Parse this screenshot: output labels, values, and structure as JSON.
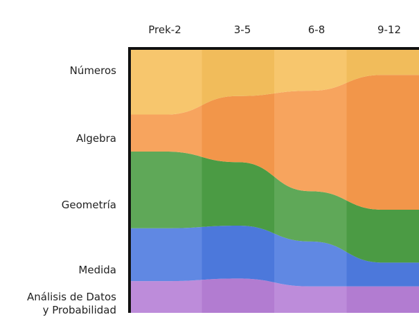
{
  "chart_data": {
    "type": "area",
    "stacked": true,
    "categories": [
      "Prek-2",
      "3-5",
      "6-8",
      "9-12"
    ],
    "series": [
      {
        "name": "Análisis de Datos y Probabilidad",
        "values": [
          12,
          13,
          10,
          10
        ],
        "color": "#b67fd6"
      },
      {
        "name": "Medida",
        "values": [
          20,
          20,
          17,
          9
        ],
        "color": "#4e7be0"
      },
      {
        "name": "Geometría",
        "values": [
          29,
          24,
          19,
          20
        ],
        "color": "#4d9f46"
      },
      {
        "name": "Algebra",
        "values": [
          14,
          25,
          38,
          51
        ],
        "color": "#f79a4c"
      },
      {
        "name": "Números",
        "values": [
          25,
          18,
          16,
          10
        ],
        "color": "#f6c05d"
      }
    ],
    "row_labels": [
      "Números",
      "Algebra",
      "Geometría",
      "Medida",
      "Análisis de Datos",
      "y Probabilidad"
    ],
    "ylim": [
      0,
      100
    ],
    "grid": false,
    "legend": "none"
  }
}
